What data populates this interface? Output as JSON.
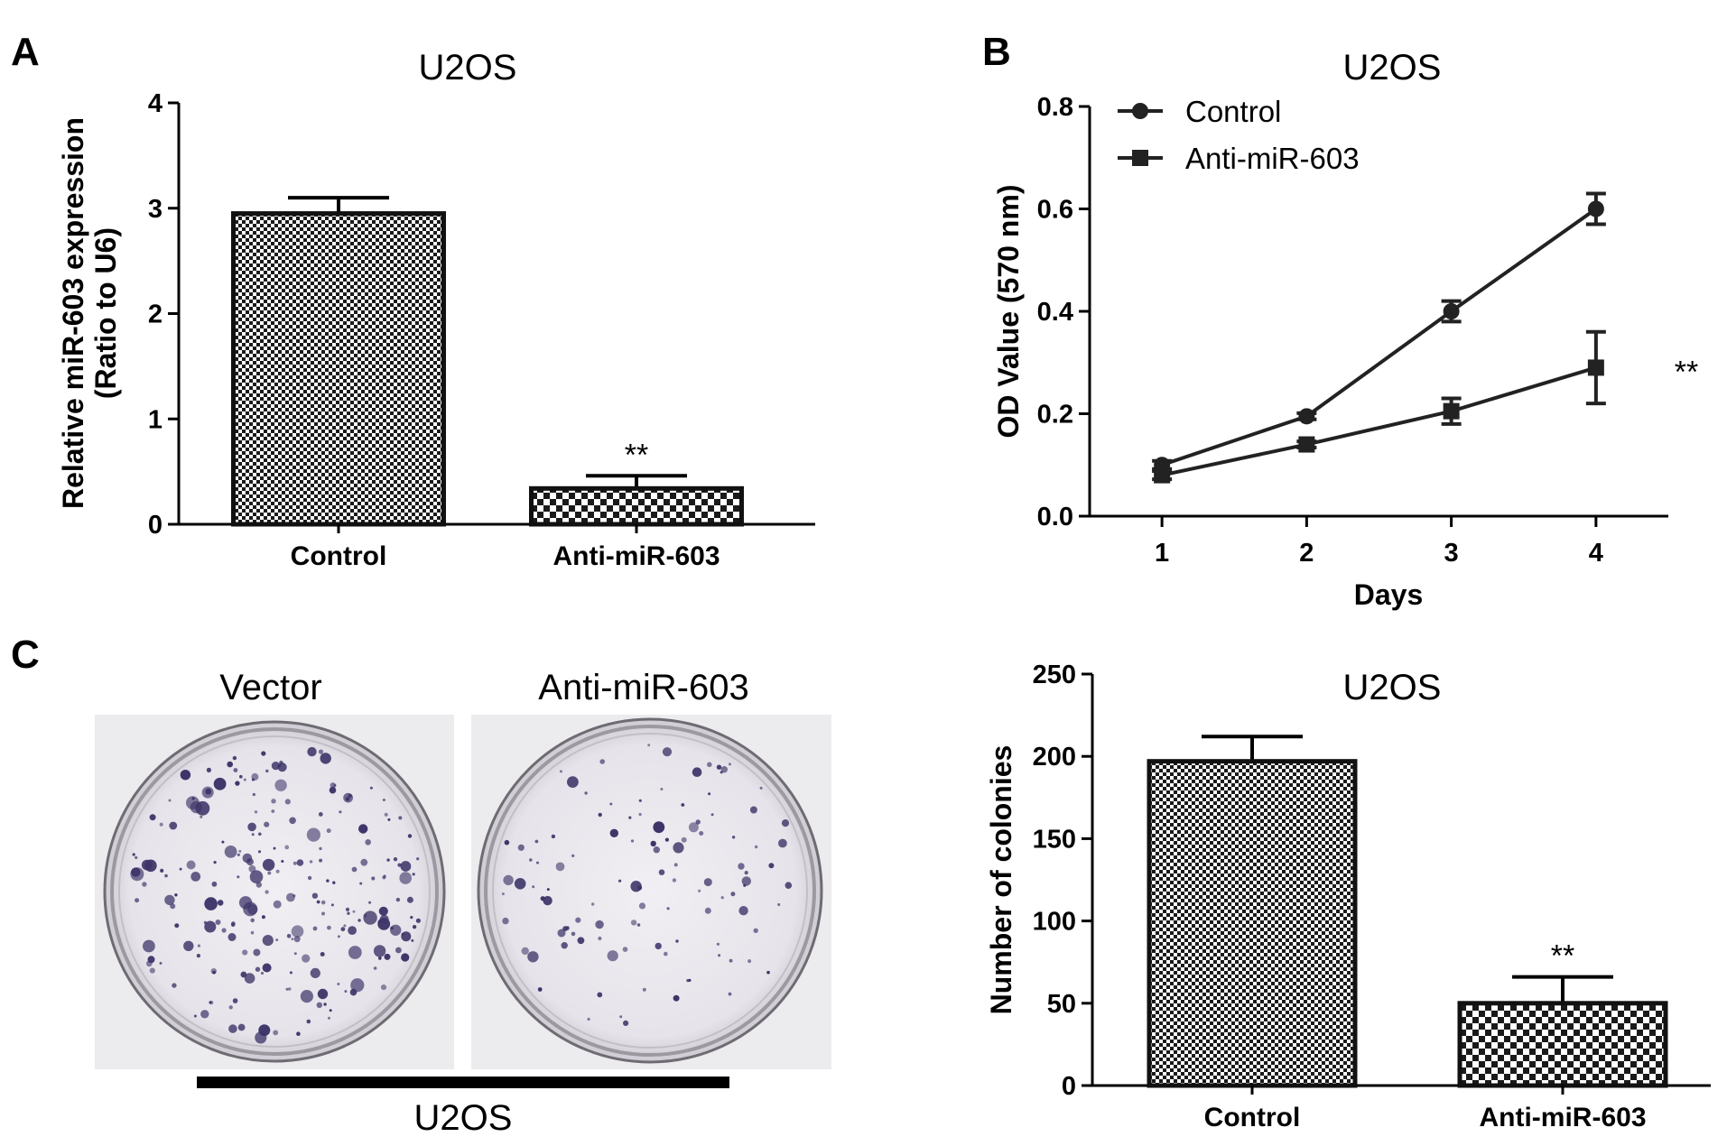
{
  "panels": {
    "a": {
      "letter": "A"
    },
    "b": {
      "letter": "B"
    },
    "c": {
      "letter": "C",
      "photo_labels": [
        "Vector",
        "Anti-miR-603"
      ],
      "cell_line": "U2OS"
    }
  },
  "chart_data": [
    {
      "id": "A",
      "type": "bar",
      "title": "U2OS",
      "xlabel": "",
      "ylabel": [
        "Relative miR-603 expression",
        "(Ratio to  U6)"
      ],
      "categories": [
        "Control",
        "Anti-miR-603"
      ],
      "values": [
        2.95,
        0.34
      ],
      "errors": [
        0.15,
        0.12
      ],
      "significance": [
        "",
        "**"
      ],
      "ylim": [
        0,
        4
      ],
      "yticks": [
        0,
        1,
        2,
        3,
        4
      ],
      "ytick_labels": [
        "0",
        "1",
        "2",
        "3",
        "4"
      ],
      "pattern": [
        "fine-checker",
        "coarse-checker"
      ]
    },
    {
      "id": "B",
      "type": "line",
      "title": "U2OS",
      "xlabel": "Days",
      "ylabel": "OD Value (570 nm)",
      "x": [
        1,
        2,
        3,
        4
      ],
      "xlim": [
        0.5,
        4.5
      ],
      "xticks": [
        1,
        2,
        3,
        4
      ],
      "xtick_labels": [
        "1",
        "2",
        "3",
        "4"
      ],
      "ylim": [
        0,
        0.8
      ],
      "yticks": [
        0,
        0.2,
        0.4,
        0.6,
        0.8
      ],
      "ytick_labels": [
        "0.0",
        "0.2",
        "0.4",
        "0.6",
        "0.8"
      ],
      "legend_position": "top-left",
      "series": [
        {
          "name": "Control",
          "marker": "circle",
          "values": [
            0.1,
            0.195,
            0.4,
            0.6
          ],
          "errors": [
            0.008,
            0.006,
            0.02,
            0.03
          ]
        },
        {
          "name": "Anti-miR-603",
          "marker": "square",
          "values": [
            0.08,
            0.14,
            0.205,
            0.29
          ],
          "errors": [
            0.008,
            0.006,
            0.025,
            0.07
          ]
        }
      ],
      "significance": "**"
    },
    {
      "id": "C",
      "type": "bar",
      "title": "U2OS",
      "xlabel": "",
      "ylabel": "Number of colonies",
      "categories": [
        "Control",
        "Anti-miR-603"
      ],
      "values": [
        197,
        50
      ],
      "errors": [
        15,
        16
      ],
      "significance": [
        "",
        "**"
      ],
      "ylim": [
        0,
        250
      ],
      "yticks": [
        0,
        50,
        100,
        150,
        200,
        250
      ],
      "ytick_labels": [
        "0",
        "50",
        "100",
        "150",
        "200",
        "250"
      ],
      "pattern": [
        "fine-checker",
        "coarse-checker"
      ]
    }
  ]
}
